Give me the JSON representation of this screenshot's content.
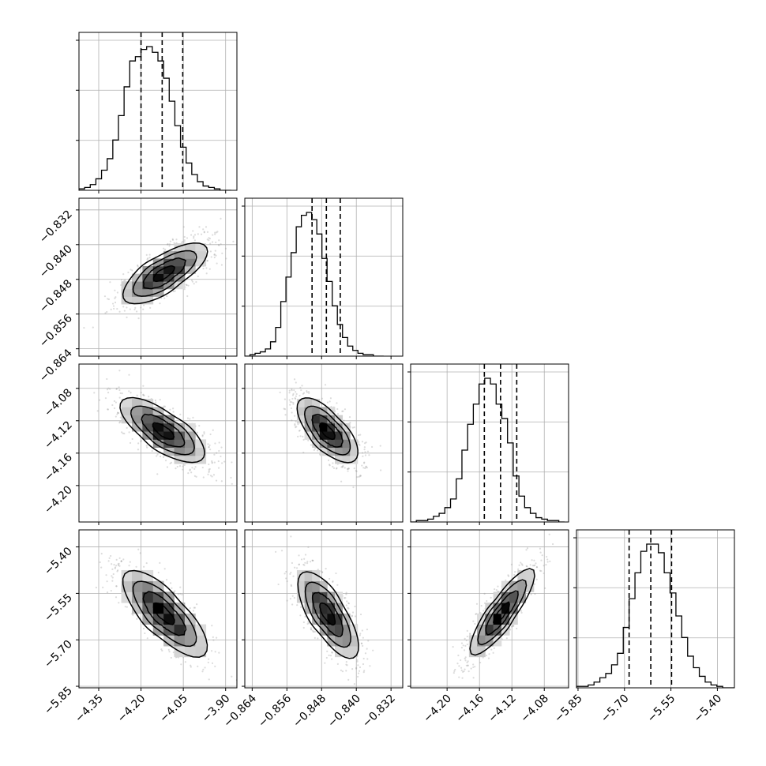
{
  "chart_data": {
    "type": "corner",
    "parameters": [
      {
        "index": 0,
        "mean": -4.12,
        "sd": 0.075,
        "quantiles": [
          -4.2,
          -4.125,
          -4.052
        ],
        "xlim": [
          -4.42,
          -3.86
        ],
        "ticks": [
          -4.35,
          -4.2,
          -4.05,
          -3.9
        ],
        "tick_labels": [
          "−4.35",
          "−4.20",
          "−4.05",
          "−3.90"
        ]
      },
      {
        "index": 1,
        "mean": -0.8467,
        "sd": 0.0035,
        "quantiles": [
          -0.8502,
          -0.8469,
          -0.8437
        ],
        "xlim": [
          -0.8657,
          -0.8293
        ],
        "ticks": [
          -0.864,
          -0.856,
          -0.848,
          -0.84,
          -0.832
        ],
        "tick_labels": [
          "−0.864",
          "−0.856",
          "−0.848",
          "−0.840",
          "−0.832"
        ]
      },
      {
        "index": 2,
        "mean": -4.133,
        "sd": 0.02,
        "quantiles": [
          -4.154,
          -4.134,
          -4.114
        ],
        "xlim": [
          -4.245,
          -4.05
        ],
        "ticks": [
          -4.2,
          -4.16,
          -4.12,
          -4.08
        ],
        "tick_labels": [
          "−4.20",
          "−4.16",
          "−4.12",
          "−4.08"
        ]
      },
      {
        "index": 3,
        "mean": -5.615,
        "sd": 0.07,
        "quantiles": [
          -5.685,
          -5.615,
          -5.548
        ],
        "xlim": [
          -5.855,
          -5.345
        ],
        "ticks": [
          -5.85,
          -5.7,
          -5.55,
          -5.4
        ],
        "tick_labels": [
          "−5.85",
          "−5.70",
          "−5.55",
          "−5.40"
        ]
      }
    ],
    "histograms": [
      {
        "param": 0,
        "edges_range": [
          -4.42,
          -3.88
        ],
        "bins": 27,
        "counts": [
          1,
          2,
          4,
          8,
          14,
          22,
          35,
          52,
          72,
          90,
          93,
          98,
          100,
          96,
          90,
          78,
          62,
          45,
          30,
          19,
          11,
          6,
          3,
          2,
          1,
          0,
          0
        ]
      },
      {
        "param": 1,
        "edges_range": [
          -0.8657,
          -0.8337
        ],
        "bins": 27,
        "counts": [
          0,
          1,
          2,
          3,
          5,
          10,
          20,
          38,
          55,
          72,
          90,
          98,
          100,
          95,
          85,
          68,
          52,
          35,
          22,
          13,
          7,
          4,
          2,
          1,
          1,
          0,
          0
        ]
      },
      {
        "param": 2,
        "edges_range": [
          -4.245,
          -4.055
        ],
        "bins": 27,
        "counts": [
          0,
          1,
          1,
          2,
          4,
          6,
          10,
          16,
          30,
          50,
          68,
          82,
          96,
          100,
          96,
          82,
          72,
          55,
          32,
          18,
          10,
          6,
          3,
          2,
          1,
          1,
          0
        ]
      },
      {
        "param": 3,
        "edges_range": [
          -5.855,
          -5.345
        ],
        "bins": 27,
        "counts": [
          1,
          1,
          2,
          4,
          7,
          10,
          16,
          24,
          42,
          62,
          80,
          95,
          100,
          100,
          94,
          80,
          66,
          50,
          35,
          22,
          14,
          8,
          4,
          2,
          1,
          0,
          0
        ]
      }
    ],
    "pairs": [
      {
        "x_param": 0,
        "y_param": 1,
        "correlation": 0.72
      },
      {
        "x_param": 0,
        "y_param": 2,
        "correlation": -0.72
      },
      {
        "x_param": 1,
        "y_param": 2,
        "correlation": -0.68
      },
      {
        "x_param": 0,
        "y_param": 3,
        "correlation": -0.76
      },
      {
        "x_param": 1,
        "y_param": 3,
        "correlation": -0.72
      },
      {
        "x_param": 2,
        "y_param": 3,
        "correlation": 0.86
      }
    ],
    "contour_levels_sigma": [
      0.5,
      1.0,
      1.5,
      2.0
    ],
    "grid": true,
    "title": "",
    "colors": {
      "scatter": "#9a9a9a",
      "density": "#000000",
      "lines": "#000000"
    }
  }
}
